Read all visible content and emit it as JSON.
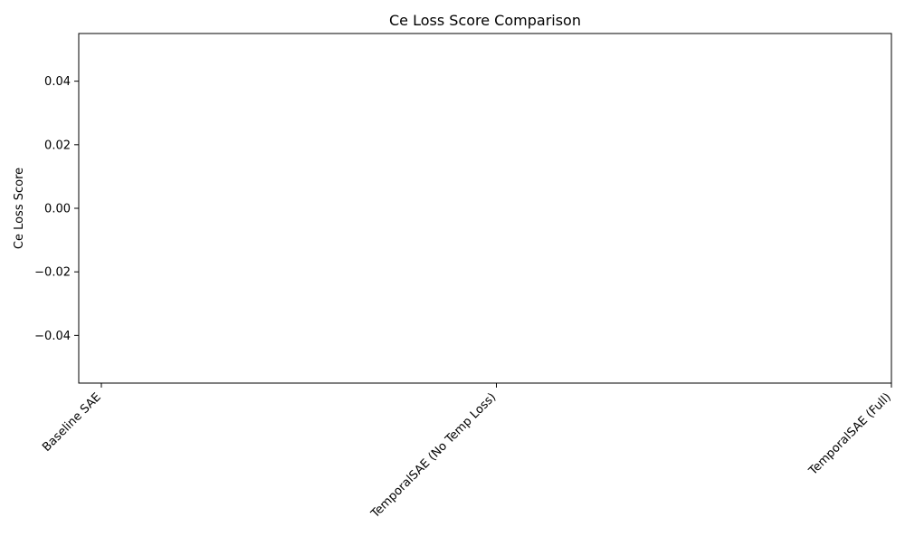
{
  "chart_data": {
    "type": "bar",
    "title": "Ce Loss Score Comparison",
    "xlabel": "",
    "ylabel": "Ce Loss Score",
    "categories": [
      "Baseline SAE",
      "TemporalSAE (No Temp Loss)",
      "TemporalSAE (Full)"
    ],
    "values": [
      0,
      0,
      0
    ],
    "ylim": [
      -0.055,
      0.055
    ],
    "yticks": [
      0.04,
      0.02,
      0.0,
      -0.02,
      -0.04
    ],
    "ytick_labels": [
      "0.04",
      "0.02",
      "0.00",
      "−0.02",
      "−0.04"
    ],
    "grid": false,
    "legend": "none"
  }
}
